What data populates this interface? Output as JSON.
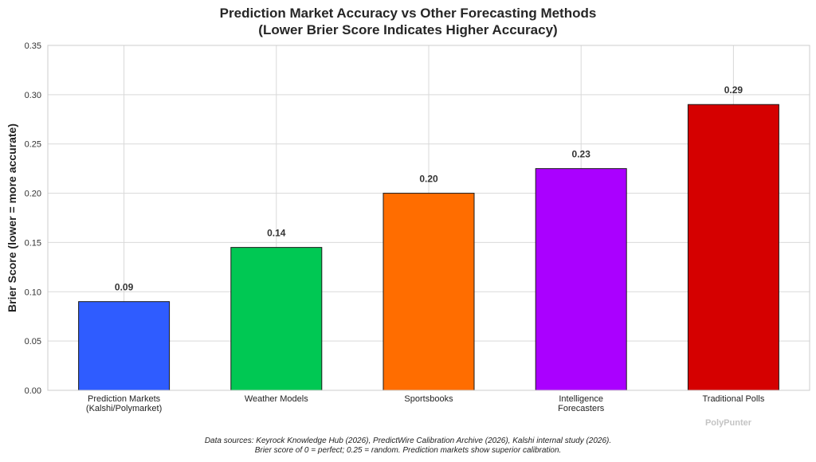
{
  "title": {
    "line1": "Prediction Market Accuracy vs Other Forecasting Methods",
    "line2": "(Lower Brier Score Indicates Higher Accuracy)"
  },
  "watermark": "PolyPunter",
  "footnote": {
    "line1": "Data sources: Keyrock Knowledge Hub (2026), PredictWire Calibration Archive (2026), Kalshi internal study (2026).",
    "line2": "Brier score of 0 = perfect; 0.25 = random. Prediction markets show superior calibration."
  },
  "chart_data": {
    "type": "bar",
    "categories": [
      [
        "Prediction Markets",
        "(Kalshi/Polymarket)"
      ],
      [
        "Weather Models"
      ],
      [
        "Sportsbooks"
      ],
      [
        "Intelligence",
        "Forecasters"
      ],
      [
        "Traditional Polls"
      ]
    ],
    "values": [
      0.09,
      0.145,
      0.2,
      0.225,
      0.29
    ],
    "value_labels": [
      "0.09",
      "0.14",
      "0.20",
      "0.23",
      "0.29"
    ],
    "colors": [
      "#2f5cff",
      "#00c853",
      "#ff6d00",
      "#aa00ff",
      "#d50000"
    ],
    "xlabel": "",
    "ylabel": "Brier Score (lower = more accurate)",
    "ylim": [
      0,
      0.35
    ],
    "yticks": [
      "0.00",
      "0.05",
      "0.10",
      "0.15",
      "0.20",
      "0.25",
      "0.30",
      "0.35"
    ],
    "grid": true,
    "legend": "none"
  }
}
